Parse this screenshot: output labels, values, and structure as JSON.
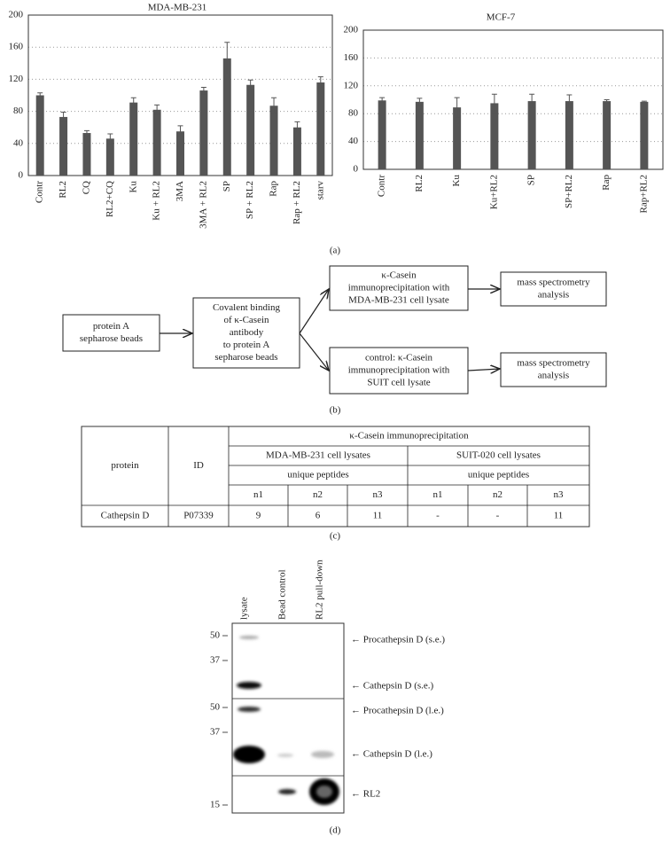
{
  "chart_data": [
    {
      "type": "bar",
      "title": "MDA-MB-231",
      "categories": [
        "Contr",
        "RL2",
        "CQ",
        "RL2+CQ",
        "Ku",
        "Ku + RL2",
        "3MA",
        "3MA + RL2",
        "SP",
        "SP + RL2",
        "Rap",
        "Rap + RL2",
        "starv"
      ],
      "values": [
        100,
        73,
        53,
        46,
        91,
        82,
        55,
        106,
        146,
        113,
        87,
        60,
        116
      ],
      "errors": [
        3,
        6,
        3,
        6,
        6,
        6,
        7,
        4,
        20,
        6,
        10,
        7,
        7
      ],
      "color": "#555555",
      "ylim": [
        0,
        200
      ],
      "yticks": [
        0,
        40,
        80,
        120,
        160,
        200
      ],
      "grid": true
    },
    {
      "type": "bar",
      "title": "MCF-7",
      "categories": [
        "Contr",
        "RL2",
        "Ku",
        "Ku+RL2",
        "SP",
        "SP+RL2",
        "Rap",
        "Rap+RL2"
      ],
      "values": [
        99,
        97,
        89,
        95,
        98,
        98,
        98,
        97
      ],
      "errors": [
        4,
        5,
        14,
        13,
        10,
        9,
        2,
        1
      ],
      "color": "#555555",
      "ylim": [
        0,
        200
      ],
      "yticks": [
        0,
        40,
        80,
        120,
        160,
        200
      ],
      "grid": true
    }
  ],
  "panel_labels": [
    "(a)",
    "(b)",
    "(c)",
    "(d)"
  ],
  "diagram": {
    "nodes": [
      {
        "lines": [
          "protein A",
          "sepharose beads"
        ]
      },
      {
        "lines": [
          "Covalent binding",
          "of κ-Casein",
          "antibody",
          "to protein A",
          "sepharose beads"
        ]
      },
      {
        "lines": [
          "κ-Casein",
          "immunoprecipitation with",
          "MDA-MB-231 cell lysate"
        ]
      },
      {
        "lines": [
          "control: κ-Casein",
          "immunoprecipitation with",
          "SUIT cell lysate"
        ]
      },
      {
        "lines": [
          "mass spectrometry",
          "analysis"
        ]
      },
      {
        "lines": [
          "mass spectrometry",
          "analysis"
        ]
      }
    ]
  },
  "table": {
    "header": [
      "protein",
      "ID",
      "κ-Casein immunoprecipitation"
    ],
    "groups": [
      "MDA-MB-231 cell lysates",
      "SUIT-020 cell lysates"
    ],
    "subgroups": [
      "unique peptides",
      "unique peptides"
    ],
    "columns": [
      "n1",
      "n2",
      "n3",
      "n1",
      "n2",
      "n3"
    ],
    "rows": [
      [
        "Cathepsin D",
        "P07339",
        "9",
        "6",
        "11",
        "-",
        "-",
        "11"
      ]
    ]
  },
  "blot": {
    "lanes": [
      "lysate",
      "Bead control",
      "RL2 pull-down"
    ],
    "markers": [
      "50",
      "37",
      "50",
      "37",
      "15"
    ],
    "bands": [
      "← Procathepsin D (s.e.)",
      "← Cathepsin D (s.e.)",
      "← Procathepsin D (l.e.)",
      "← Cathepsin D (l.e.)",
      "← RL2"
    ]
  }
}
